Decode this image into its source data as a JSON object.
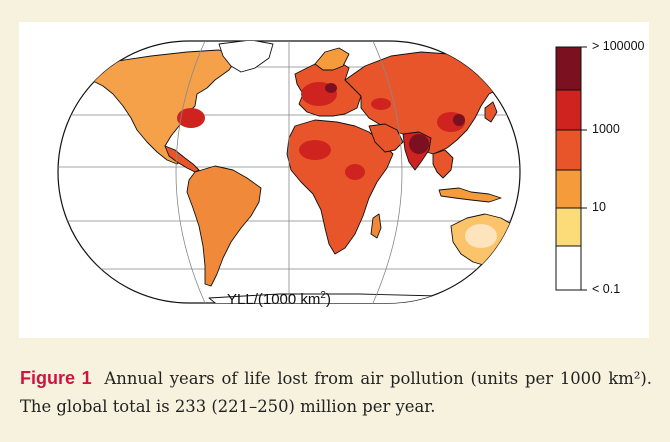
{
  "map": {
    "axis_label_main": "YLL/(1000 km",
    "axis_label_exp": "2",
    "axis_label_end": ")",
    "projection": "pseudo-cylindrical world map (Robinson-like)",
    "legend": {
      "labels": [
        "> 100000",
        "1000",
        "10",
        "< 0.1"
      ],
      "bins": [
        {
          "color": "#ffffff"
        },
        {
          "color": "#fbdc78"
        },
        {
          "color": "#f59b3c"
        },
        {
          "color": "#e8552b"
        },
        {
          "color": "#cf2320"
        },
        {
          "color": "#7a1020"
        }
      ]
    },
    "colors": {
      "very_low": "#ffffff",
      "low": "#fbdc78",
      "mid": "#f59b3c",
      "high": "#e8552b",
      "higher": "#cf2320",
      "highest": "#7a1020",
      "graticule": "#888888",
      "coast": "#111111"
    }
  },
  "caption": {
    "label": "Figure 1",
    "text": "Annual years of life lost from air pollution (units per 1000 km²). The global total is 233 (221–250) million per year.",
    "accent_color": "#d01440"
  }
}
